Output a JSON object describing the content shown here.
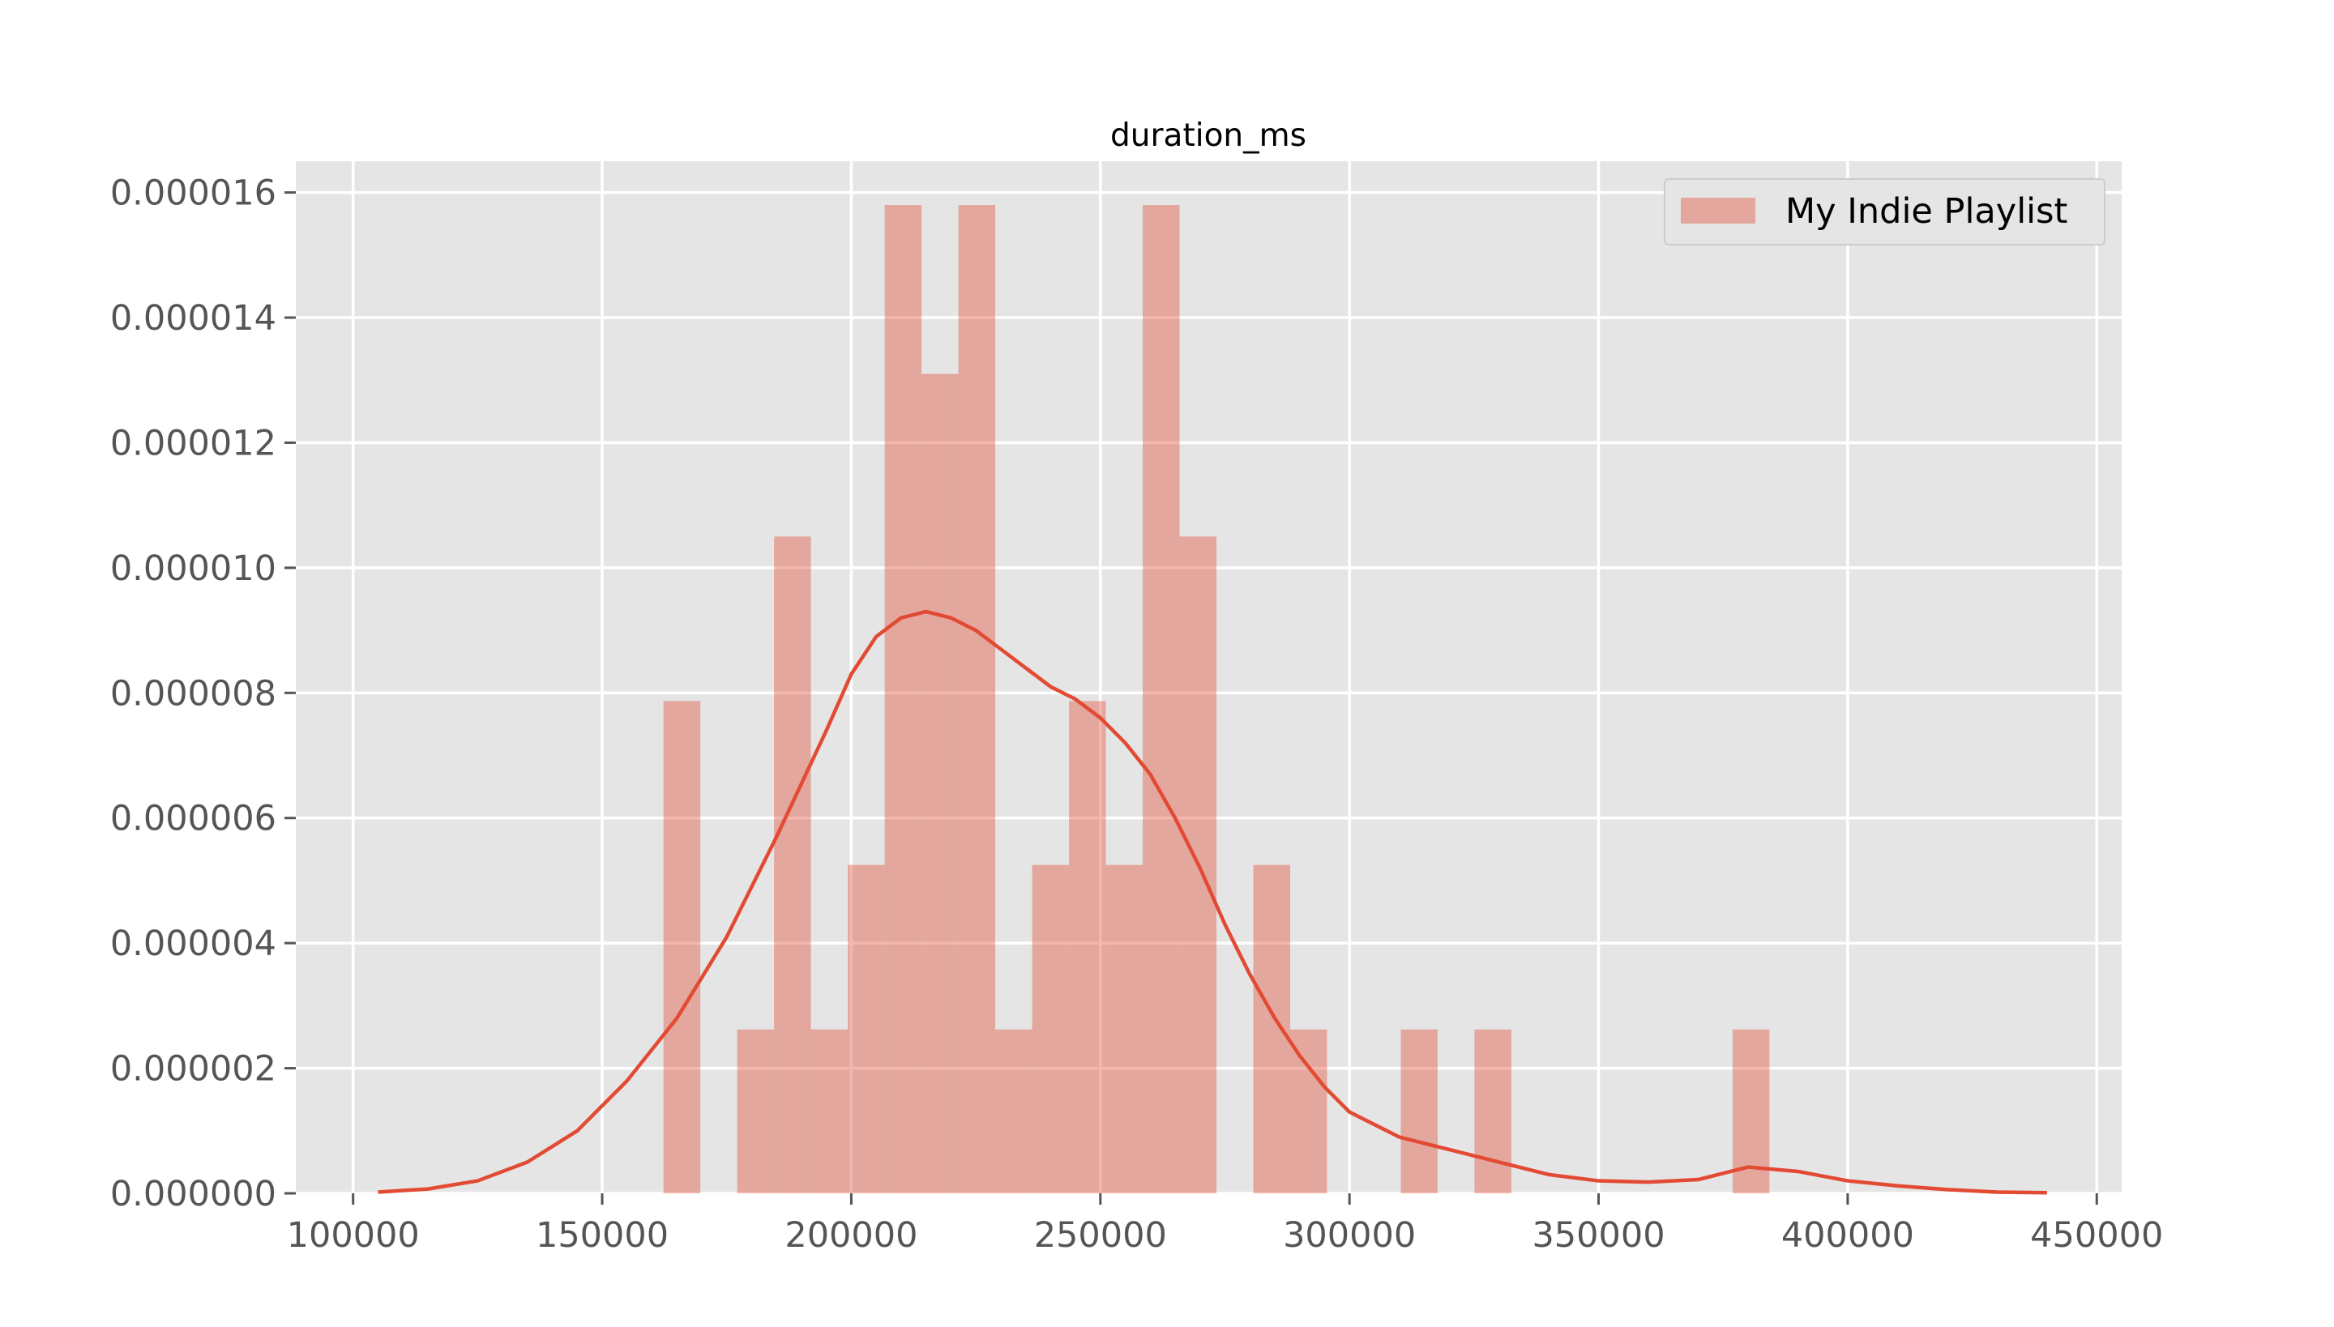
{
  "chart_data": {
    "type": "bar",
    "title": "duration_ms",
    "xlabel": "",
    "ylabel": "",
    "xlim": [
      88500,
      455000
    ],
    "ylim": [
      0,
      1.65e-05
    ],
    "grid": true,
    "x_ticks": [
      100000,
      150000,
      200000,
      250000,
      300000,
      350000,
      400000,
      450000
    ],
    "y_ticks": [
      "0.000000",
      "0.000002",
      "0.000004",
      "0.000006",
      "0.000008",
      "0.000010",
      "0.000012",
      "0.000014",
      "0.000016"
    ],
    "y_tick_values": [
      0,
      2e-06,
      4e-06,
      6e-06,
      8e-06,
      1e-05,
      1.2e-05,
      1.4e-05,
      1.6e-05
    ],
    "legend": {
      "placement": "top-right",
      "entries": [
        "My Indie Playlist"
      ]
    },
    "series": [
      {
        "name": "My Indie Playlist",
        "kind": "histogram",
        "color": "#e24a33",
        "bin_width": 7400,
        "bins": [
          {
            "x0": 162300,
            "density": 7.87e-06
          },
          {
            "x0": 169700,
            "density": 0
          },
          {
            "x0": 177100,
            "density": 2.62e-06
          },
          {
            "x0": 184500,
            "density": 1.05e-05
          },
          {
            "x0": 191900,
            "density": 2.62e-06
          },
          {
            "x0": 199300,
            "density": 5.25e-06
          },
          {
            "x0": 206700,
            "density": 1.58e-05
          },
          {
            "x0": 214100,
            "density": 1.31e-05
          },
          {
            "x0": 221500,
            "density": 1.58e-05
          },
          {
            "x0": 228900,
            "density": 2.62e-06
          },
          {
            "x0": 236300,
            "density": 5.25e-06
          },
          {
            "x0": 243700,
            "density": 7.87e-06
          },
          {
            "x0": 251100,
            "density": 5.25e-06
          },
          {
            "x0": 258500,
            "density": 1.58e-05
          },
          {
            "x0": 265900,
            "density": 1.05e-05
          },
          {
            "x0": 273300,
            "density": 0
          },
          {
            "x0": 280700,
            "density": 5.25e-06
          },
          {
            "x0": 288100,
            "density": 2.62e-06
          },
          {
            "x0": 295500,
            "density": 0
          },
          {
            "x0": 302900,
            "density": 0
          },
          {
            "x0": 310300,
            "density": 2.62e-06
          },
          {
            "x0": 317700,
            "density": 0
          },
          {
            "x0": 325100,
            "density": 2.62e-06
          },
          {
            "x0": 332500,
            "density": 0
          },
          {
            "x0": 339900,
            "density": 0
          },
          {
            "x0": 347300,
            "density": 0
          },
          {
            "x0": 354700,
            "density": 0
          },
          {
            "x0": 362100,
            "density": 0
          },
          {
            "x0": 369500,
            "density": 0
          },
          {
            "x0": 376900,
            "density": 2.62e-06
          }
        ]
      },
      {
        "name": "kde",
        "kind": "line",
        "color": "#e24a33",
        "x": [
          105000,
          115000,
          125000,
          135000,
          145000,
          155000,
          165000,
          175000,
          185000,
          195000,
          200000,
          205000,
          210000,
          215000,
          220000,
          225000,
          230000,
          235000,
          240000,
          245000,
          250000,
          255000,
          260000,
          265000,
          270000,
          275000,
          280000,
          285000,
          290000,
          295000,
          300000,
          310000,
          320000,
          330000,
          340000,
          350000,
          360000,
          370000,
          380000,
          390000,
          400000,
          410000,
          420000,
          430000,
          440000
        ],
        "y": [
          2e-08,
          7e-08,
          2e-07,
          5e-07,
          1e-06,
          1.8e-06,
          2.8e-06,
          4.1e-06,
          5.7e-06,
          7.4e-06,
          8.3e-06,
          8.9e-06,
          9.2e-06,
          9.3e-06,
          9.2e-06,
          9e-06,
          8.7e-06,
          8.4e-06,
          8.1e-06,
          7.9e-06,
          7.6e-06,
          7.2e-06,
          6.7e-06,
          6e-06,
          5.2e-06,
          4.3e-06,
          3.5e-06,
          2.8e-06,
          2.2e-06,
          1.7e-06,
          1.3e-06,
          9e-07,
          7e-07,
          5e-07,
          3e-07,
          2e-07,
          1.8e-07,
          2.2e-07,
          4.2e-07,
          3.5e-07,
          2e-07,
          1.2e-07,
          6e-08,
          2e-08,
          1e-08
        ]
      }
    ]
  }
}
